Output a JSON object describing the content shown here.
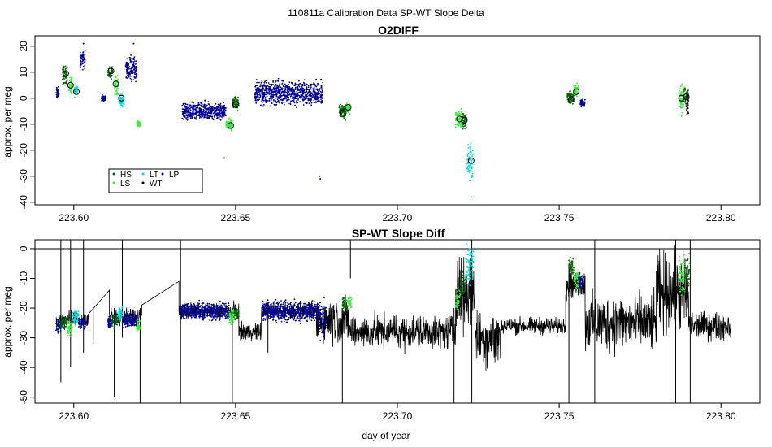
{
  "figure": {
    "suptitle": "110811a   Calibration Data SP-WT Slope Delta"
  },
  "colors": {
    "HS": "#006400",
    "LS": "#33ee33",
    "LT": "#00dddd",
    "WT": "#000000",
    "LP": "#000099",
    "trace": "#000000"
  },
  "chart_data": [
    {
      "type": "scatter",
      "title": "O2DIFF",
      "xlabel": "",
      "ylabel": "approx. per meg",
      "xlim": [
        223.588,
        223.812
      ],
      "ylim": [
        -41,
        24
      ],
      "xticks": [
        223.6,
        223.65,
        223.7,
        223.75,
        223.8
      ],
      "xtick_labels": [
        "223.60",
        "223.65",
        "223.70",
        "223.75",
        "223.80"
      ],
      "yticks": [
        20,
        10,
        0,
        -10,
        -20,
        -30,
        -40
      ],
      "ytick_labels": [
        "20",
        "10",
        "0",
        "-10",
        "-20",
        "-30",
        "-40"
      ],
      "legend": {
        "placement": "bottom-left",
        "entries": [
          {
            "label": "HS",
            "key": "HS"
          },
          {
            "label": "LS",
            "key": "LS"
          },
          {
            "label": "LT",
            "key": "LT"
          },
          {
            "label": "WT",
            "key": "WT"
          },
          {
            "label": "LP",
            "key": "LP"
          }
        ]
      },
      "clusters": [
        {
          "key": "LP",
          "x": [
            223.5945,
            223.5955
          ],
          "center": 2,
          "spread": 2
        },
        {
          "key": "HS",
          "x": [
            223.5965,
            223.598
          ],
          "center": 9,
          "spread": 3
        },
        {
          "key": "LS",
          "x": [
            223.5985,
            223.5995
          ],
          "center": 5,
          "spread": 3
        },
        {
          "key": "LT",
          "x": [
            223.6,
            223.6012
          ],
          "center": 3,
          "spread": 2
        },
        {
          "key": "LP",
          "x": [
            223.602,
            223.6035
          ],
          "center": 15,
          "spread": 3
        },
        {
          "key": "LP",
          "x": [
            223.6085,
            223.6098
          ],
          "center": 0,
          "spread": 1
        },
        {
          "key": "HS",
          "x": [
            223.6105,
            223.612
          ],
          "center": 10,
          "spread": 2
        },
        {
          "key": "LS",
          "x": [
            223.6125,
            223.6138
          ],
          "center": 5,
          "spread": 3
        },
        {
          "key": "LT",
          "x": [
            223.614,
            223.6155
          ],
          "center": -1,
          "spread": 2
        },
        {
          "key": "LP",
          "x": [
            223.616,
            223.6195
          ],
          "center": 11,
          "spread": 4
        },
        {
          "key": "LS",
          "x": [
            223.6195,
            223.6205
          ],
          "center": -10,
          "spread": 1
        },
        {
          "key": "LP",
          "x": [
            223.6335,
            223.647
          ],
          "center": -5,
          "spread": 3
        },
        {
          "key": "LS",
          "x": [
            223.647,
            223.649
          ],
          "center": -10,
          "spread": 2
        },
        {
          "key": "HS",
          "x": [
            223.649,
            223.651
          ],
          "center": -2,
          "spread": 2
        },
        {
          "key": "LP",
          "x": [
            223.656,
            223.677
          ],
          "center": 2,
          "spread": 4
        },
        {
          "key": "HS",
          "x": [
            223.682,
            223.684
          ],
          "center": -5,
          "spread": 3
        },
        {
          "key": "LS",
          "x": [
            223.684,
            223.6855
          ],
          "center": -4,
          "spread": 2
        },
        {
          "key": "LS",
          "x": [
            223.718,
            223.72
          ],
          "center": -8,
          "spread": 3
        },
        {
          "key": "HS",
          "x": [
            223.72,
            223.7215
          ],
          "center": -9,
          "spread": 3
        },
        {
          "key": "LT",
          "x": [
            223.7215,
            223.7235
          ],
          "center": -24,
          "spread": 6
        },
        {
          "key": "HS",
          "x": [
            223.7525,
            223.7545
          ],
          "center": 0,
          "spread": 2
        },
        {
          "key": "LS",
          "x": [
            223.7545,
            223.756
          ],
          "center": 3,
          "spread": 2
        },
        {
          "key": "LP",
          "x": [
            223.7565,
            223.758
          ],
          "center": -2,
          "spread": 1.5
        },
        {
          "key": "LS",
          "x": [
            223.787,
            223.7885
          ],
          "center": 0,
          "spread": 5
        },
        {
          "key": "HS",
          "x": [
            223.7885,
            223.79
          ],
          "center": 1,
          "spread": 3
        },
        {
          "key": "WT",
          "x": [
            223.7893,
            223.79
          ],
          "center": -3,
          "spread": 4
        }
      ],
      "means": [
        {
          "x": 223.5975,
          "y": 9.5
        },
        {
          "x": 223.599,
          "y": 5
        },
        {
          "x": 223.6008,
          "y": 2.5
        },
        {
          "x": 223.6115,
          "y": 10.5
        },
        {
          "x": 223.613,
          "y": 5.5
        },
        {
          "x": 223.6147,
          "y": 0
        },
        {
          "x": 223.6485,
          "y": -10.5
        },
        {
          "x": 223.65,
          "y": -2.5
        },
        {
          "x": 223.6833,
          "y": -5.5
        },
        {
          "x": 223.6848,
          "y": -3.5
        },
        {
          "x": 223.7192,
          "y": -8
        },
        {
          "x": 223.7207,
          "y": -8.5
        },
        {
          "x": 223.7228,
          "y": -24
        },
        {
          "x": 223.7537,
          "y": -0.5
        },
        {
          "x": 223.7553,
          "y": 2.5
        },
        {
          "x": 223.7878,
          "y": 0
        },
        {
          "x": 223.7893,
          "y": 0.5
        }
      ],
      "outliers": [
        {
          "key": "LP",
          "x": 223.6465,
          "y": -23
        },
        {
          "key": "LP",
          "x": 223.676,
          "y": -30
        },
        {
          "key": "LP",
          "x": 223.6762,
          "y": -31
        },
        {
          "key": "LP",
          "x": 223.6185,
          "y": 21
        },
        {
          "key": "LP",
          "x": 223.603,
          "y": 21
        },
        {
          "key": "LT",
          "x": 223.7228,
          "y": -38
        }
      ]
    },
    {
      "type": "line",
      "title": "SP-WT Slope Diff",
      "xlabel": "day of year",
      "ylabel": "approx. per meg",
      "xlim": [
        223.588,
        223.812
      ],
      "ylim": [
        -52,
        3
      ],
      "reference_line": 0,
      "xticks": [
        223.6,
        223.65,
        223.7,
        223.75,
        223.8
      ],
      "xtick_labels": [
        "223.60",
        "223.65",
        "223.70",
        "223.75",
        "223.80"
      ],
      "yticks": [
        0,
        -10,
        -20,
        -30,
        -40,
        -50
      ],
      "ytick_labels": [
        "0",
        "-10",
        "-20",
        "-30",
        "-40",
        "-50"
      ],
      "segments": [
        {
          "x": [
            223.5945,
            223.6045
          ],
          "center": -24,
          "noise": 3
        },
        {
          "x": [
            223.6045,
            223.611
          ],
          "center": -18,
          "noise": 1
        },
        {
          "x": [
            223.611,
            223.621
          ],
          "center": -23,
          "noise": 3
        },
        {
          "x": [
            223.621,
            223.6325
          ],
          "center": -15,
          "noise": 1
        },
        {
          "x": [
            223.6325,
            223.651
          ],
          "center": -21,
          "noise": 3
        },
        {
          "x": [
            223.651,
            223.658
          ],
          "center": -28,
          "noise": 3
        },
        {
          "x": [
            223.658,
            223.675
          ],
          "center": -21,
          "noise": 3
        },
        {
          "x": [
            223.675,
            223.685
          ],
          "center": -24,
          "noise": 8
        },
        {
          "x": [
            223.685,
            223.718
          ],
          "center": -28,
          "noise": 6
        },
        {
          "x": [
            223.718,
            223.724
          ],
          "center": -15,
          "noise": 12
        },
        {
          "x": [
            223.724,
            223.732
          ],
          "center": -30,
          "noise": 10
        },
        {
          "x": [
            223.732,
            223.752
          ],
          "center": -26,
          "noise": 3
        },
        {
          "x": [
            223.752,
            223.758
          ],
          "center": -12,
          "noise": 5
        },
        {
          "x": [
            223.758,
            223.78
          ],
          "center": -25,
          "noise": 10
        },
        {
          "x": [
            223.78,
            223.79
          ],
          "center": -15,
          "noise": 14
        },
        {
          "x": [
            223.79,
            223.803
          ],
          "center": -26,
          "noise": 5
        }
      ],
      "spikes": [
        {
          "x": 223.596,
          "y1": -45,
          "y2": 3
        },
        {
          "x": 223.599,
          "y1": -40,
          "y2": 3
        },
        {
          "x": 223.603,
          "y1": -35,
          "y2": 3
        },
        {
          "x": 223.606,
          "y1": -32,
          "y2": -20
        },
        {
          "x": 223.6125,
          "y1": -50,
          "y2": -20
        },
        {
          "x": 223.615,
          "y1": -30,
          "y2": 3
        },
        {
          "x": 223.6205,
          "y1": -52,
          "y2": -20
        },
        {
          "x": 223.633,
          "y1": -52,
          "y2": 3
        },
        {
          "x": 223.649,
          "y1": -52,
          "y2": -20
        },
        {
          "x": 223.66,
          "y1": -35,
          "y2": -20
        },
        {
          "x": 223.683,
          "y1": -52,
          "y2": -20
        },
        {
          "x": 223.6855,
          "y1": -10,
          "y2": 3
        },
        {
          "x": 223.7175,
          "y1": -52,
          "y2": -20
        },
        {
          "x": 223.723,
          "y1": -52,
          "y2": 3
        },
        {
          "x": 223.753,
          "y1": -52,
          "y2": -5
        },
        {
          "x": 223.761,
          "y1": -52,
          "y2": 3
        },
        {
          "x": 223.786,
          "y1": -52,
          "y2": 3
        },
        {
          "x": 223.7905,
          "y1": -52,
          "y2": 3
        }
      ],
      "overlays": [
        {
          "key": "LP",
          "x": [
            223.5945,
            223.596
          ],
          "center": -26,
          "spread": 2
        },
        {
          "key": "HS",
          "x": [
            223.596,
            223.598
          ],
          "center": -25,
          "spread": 2
        },
        {
          "key": "LS",
          "x": [
            223.598,
            223.5995
          ],
          "center": -27,
          "spread": 2
        },
        {
          "key": "LT",
          "x": [
            223.5995,
            223.6015
          ],
          "center": -23,
          "spread": 2
        },
        {
          "key": "LP",
          "x": [
            223.6015,
            223.6035
          ],
          "center": -25,
          "spread": 2
        },
        {
          "key": "LP",
          "x": [
            223.6105,
            223.612
          ],
          "center": -25,
          "spread": 2
        },
        {
          "key": "HS",
          "x": [
            223.612,
            223.6135
          ],
          "center": -24,
          "spread": 2
        },
        {
          "key": "LT",
          "x": [
            223.6135,
            223.615
          ],
          "center": -22,
          "spread": 2
        },
        {
          "key": "LP",
          "x": [
            223.615,
            223.6195
          ],
          "center": -24,
          "spread": 2
        },
        {
          "key": "LS",
          "x": [
            223.6195,
            223.6205
          ],
          "center": -26,
          "spread": 2
        },
        {
          "key": "LP",
          "x": [
            223.633,
            223.648
          ],
          "center": -21,
          "spread": 2.5
        },
        {
          "key": "LS",
          "x": [
            223.648,
            223.6495
          ],
          "center": -23,
          "spread": 2
        },
        {
          "key": "HS",
          "x": [
            223.6495,
            223.651
          ],
          "center": -22,
          "spread": 2
        },
        {
          "key": "LP",
          "x": [
            223.658,
            223.676
          ],
          "center": -21,
          "spread": 3
        },
        {
          "key": "LP",
          "x": [
            223.676,
            223.678
          ],
          "center": -24,
          "spread": 6
        },
        {
          "key": "HS",
          "x": [
            223.683,
            223.6845
          ],
          "center": -19,
          "spread": 2
        },
        {
          "key": "LS",
          "x": [
            223.6845,
            223.6858
          ],
          "center": -18,
          "spread": 2
        },
        {
          "key": "LS",
          "x": [
            223.718,
            223.7195
          ],
          "center": -17,
          "spread": 3
        },
        {
          "key": "HS",
          "x": [
            223.7195,
            223.721
          ],
          "center": -12,
          "spread": 4
        },
        {
          "key": "LT",
          "x": [
            223.721,
            223.7235
          ],
          "center": -5,
          "spread": 6
        },
        {
          "key": "HS",
          "x": [
            223.753,
            223.7545
          ],
          "center": -6,
          "spread": 3
        },
        {
          "key": "LS",
          "x": [
            223.7545,
            223.7558
          ],
          "center": -11,
          "spread": 3
        },
        {
          "key": "LP",
          "x": [
            223.7558,
            223.7575
          ],
          "center": -11,
          "spread": 2
        },
        {
          "key": "LS",
          "x": [
            223.787,
            223.7888
          ],
          "center": -10,
          "spread": 6
        },
        {
          "key": "HS",
          "x": [
            223.7888,
            223.7902
          ],
          "center": -8,
          "spread": 5
        }
      ]
    }
  ]
}
